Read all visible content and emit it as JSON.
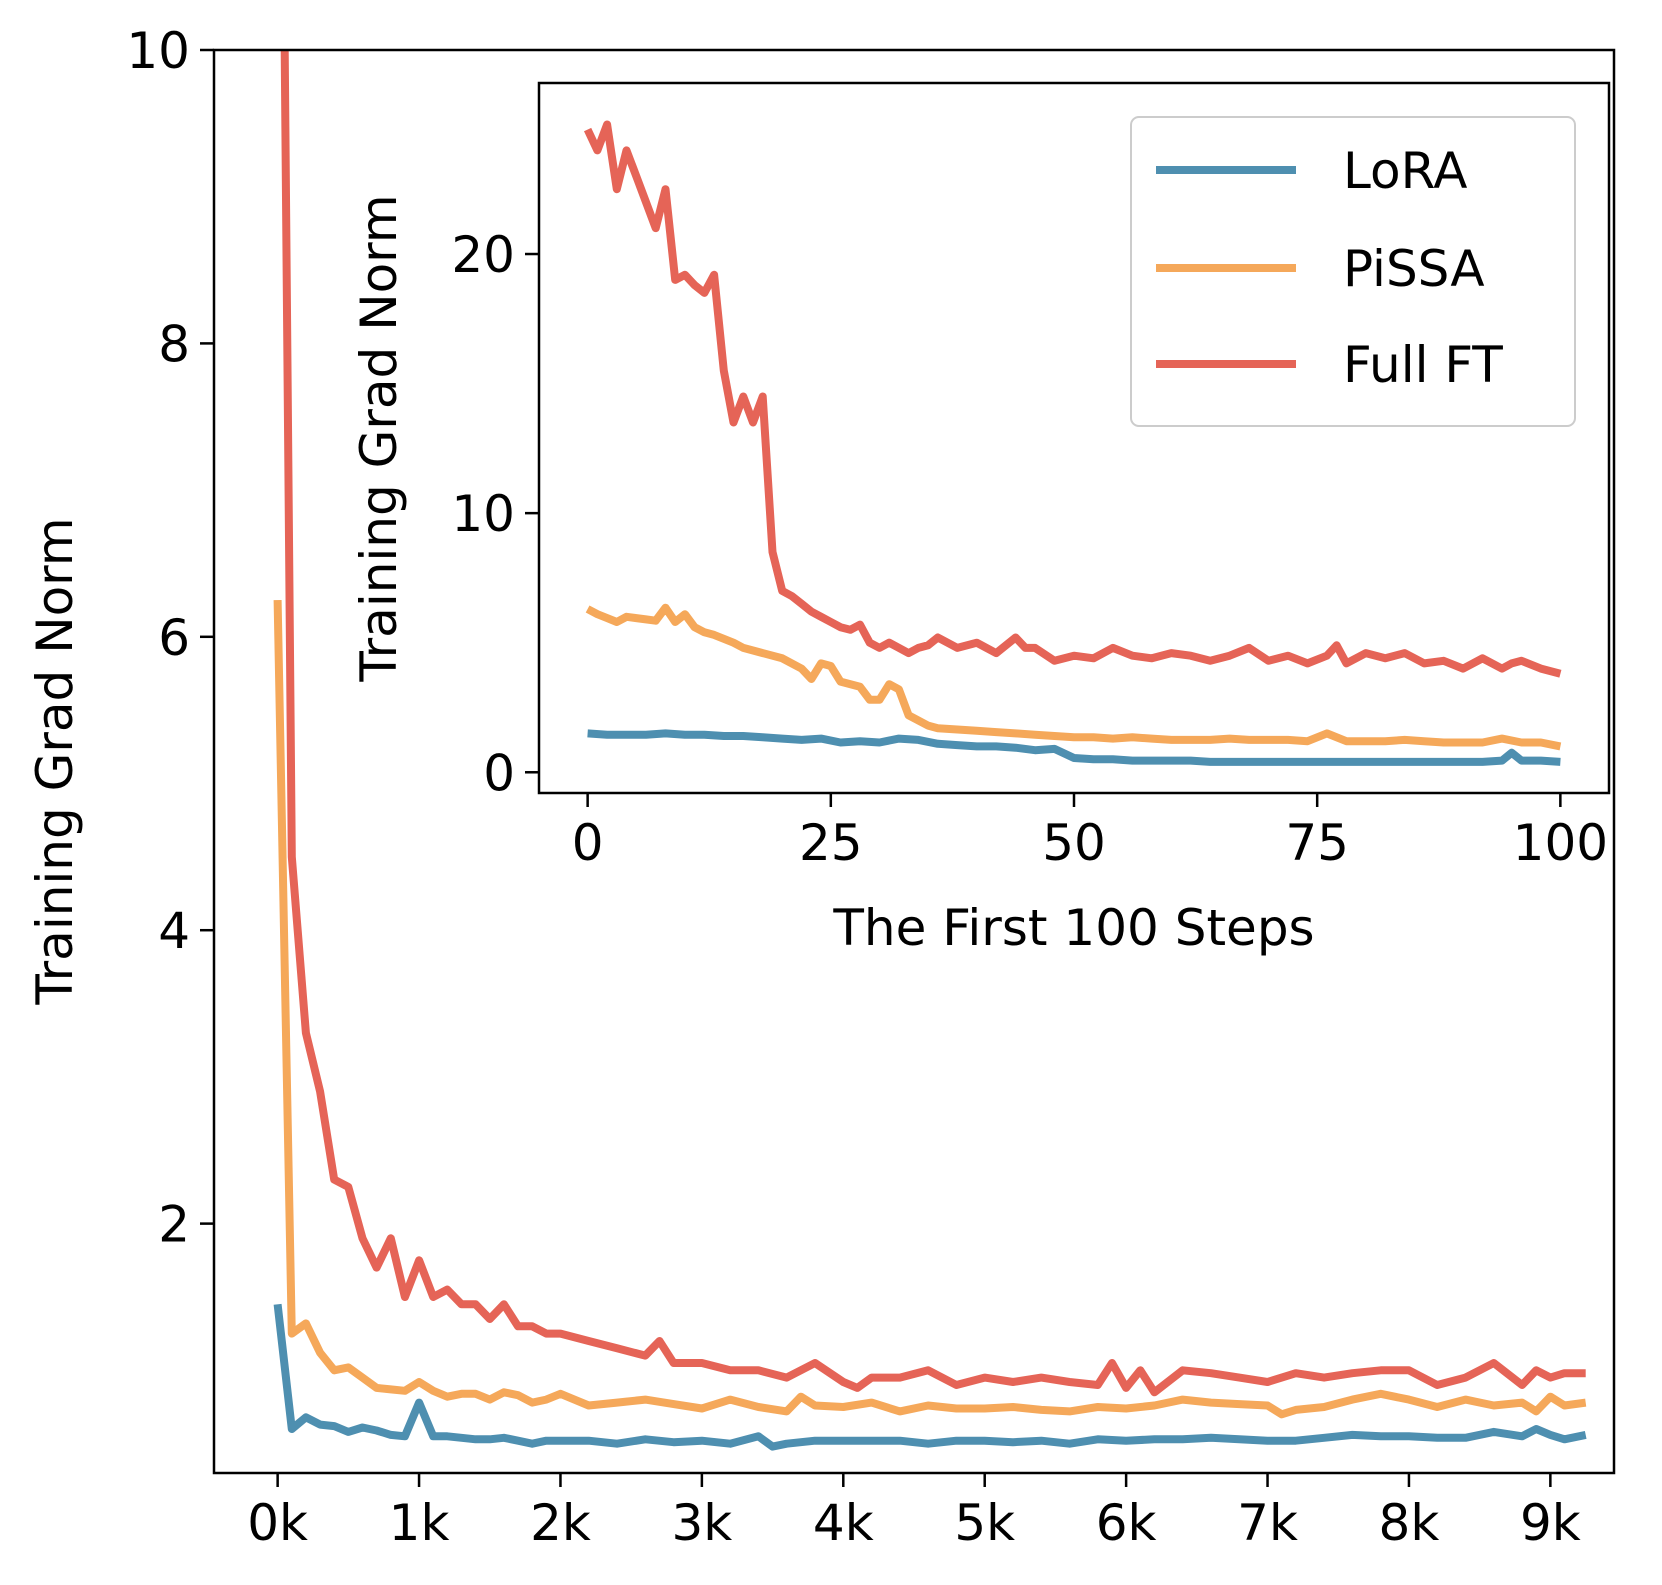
{
  "colors": {
    "lora": "#4e8fb0",
    "pissa": "#f5a85a",
    "full_ft": "#e56457"
  },
  "chart_data": [
    {
      "type": "line",
      "title": "",
      "xlabel": "",
      "ylabel": "Training Grad Norm",
      "xlim": [
        -0.45,
        9.45
      ],
      "ylim": [
        0.3,
        10
      ],
      "x_ticks": [
        0,
        1,
        2,
        3,
        4,
        5,
        6,
        7,
        8,
        9
      ],
      "x_tick_labels": [
        "0k",
        "1k",
        "2k",
        "3k",
        "4k",
        "5k",
        "6k",
        "7k",
        "8k",
        "9k"
      ],
      "y_ticks": [
        2,
        4,
        6,
        8,
        10
      ],
      "y_tick_labels": [
        "2",
        "4",
        "6",
        "8",
        "10"
      ],
      "series": [
        {
          "name": "LoRA",
          "color_key": "lora",
          "x": [
            0.0,
            0.1,
            0.2,
            0.3,
            0.4,
            0.5,
            0.6,
            0.7,
            0.8,
            0.9,
            1.0,
            1.1,
            1.2,
            1.3,
            1.4,
            1.5,
            1.6,
            1.7,
            1.8,
            1.9,
            2.0,
            2.2,
            2.4,
            2.6,
            2.8,
            3.0,
            3.2,
            3.4,
            3.5,
            3.6,
            3.8,
            4.0,
            4.2,
            4.4,
            4.6,
            4.8,
            5.0,
            5.2,
            5.4,
            5.6,
            5.8,
            6.0,
            6.2,
            6.4,
            6.6,
            6.8,
            7.0,
            7.2,
            7.4,
            7.6,
            7.8,
            8.0,
            8.2,
            8.4,
            8.6,
            8.8,
            8.9,
            9.0,
            9.1,
            9.25
          ],
          "y": [
            1.45,
            0.6,
            0.68,
            0.63,
            0.62,
            0.58,
            0.61,
            0.59,
            0.56,
            0.55,
            0.78,
            0.55,
            0.55,
            0.54,
            0.53,
            0.53,
            0.54,
            0.52,
            0.5,
            0.52,
            0.52,
            0.52,
            0.5,
            0.53,
            0.51,
            0.52,
            0.5,
            0.55,
            0.48,
            0.5,
            0.52,
            0.52,
            0.52,
            0.52,
            0.5,
            0.52,
            0.52,
            0.51,
            0.52,
            0.5,
            0.53,
            0.52,
            0.53,
            0.53,
            0.54,
            0.53,
            0.52,
            0.52,
            0.54,
            0.56,
            0.55,
            0.55,
            0.54,
            0.54,
            0.58,
            0.55,
            0.6,
            0.56,
            0.53,
            0.56
          ]
        },
        {
          "name": "PiSSA",
          "color_key": "pissa",
          "x": [
            0.0,
            0.1,
            0.2,
            0.3,
            0.4,
            0.5,
            0.6,
            0.7,
            0.8,
            0.9,
            1.0,
            1.1,
            1.2,
            1.3,
            1.4,
            1.5,
            1.6,
            1.7,
            1.8,
            1.9,
            2.0,
            2.2,
            2.4,
            2.6,
            2.8,
            3.0,
            3.2,
            3.4,
            3.6,
            3.7,
            3.8,
            4.0,
            4.2,
            4.4,
            4.6,
            4.8,
            5.0,
            5.2,
            5.4,
            5.6,
            5.8,
            6.0,
            6.2,
            6.4,
            6.6,
            6.8,
            7.0,
            7.1,
            7.2,
            7.4,
            7.6,
            7.8,
            8.0,
            8.2,
            8.4,
            8.6,
            8.8,
            8.9,
            9.0,
            9.1,
            9.25
          ],
          "y": [
            6.25,
            1.25,
            1.32,
            1.12,
            1.0,
            1.02,
            0.95,
            0.88,
            0.87,
            0.86,
            0.92,
            0.86,
            0.82,
            0.84,
            0.84,
            0.8,
            0.85,
            0.83,
            0.78,
            0.8,
            0.84,
            0.76,
            0.78,
            0.8,
            0.77,
            0.74,
            0.8,
            0.75,
            0.72,
            0.82,
            0.76,
            0.75,
            0.78,
            0.72,
            0.76,
            0.74,
            0.74,
            0.75,
            0.73,
            0.72,
            0.75,
            0.74,
            0.76,
            0.8,
            0.78,
            0.77,
            0.76,
            0.7,
            0.73,
            0.75,
            0.8,
            0.84,
            0.8,
            0.75,
            0.8,
            0.76,
            0.78,
            0.72,
            0.82,
            0.76,
            0.78
          ]
        },
        {
          "name": "Full FT",
          "color_key": "full_ft",
          "x": [
            0.05,
            0.1,
            0.2,
            0.3,
            0.4,
            0.5,
            0.6,
            0.7,
            0.8,
            0.9,
            1.0,
            1.1,
            1.2,
            1.3,
            1.4,
            1.5,
            1.6,
            1.7,
            1.8,
            1.9,
            2.0,
            2.2,
            2.4,
            2.6,
            2.7,
            2.8,
            3.0,
            3.2,
            3.4,
            3.6,
            3.8,
            4.0,
            4.1,
            4.2,
            4.4,
            4.6,
            4.8,
            5.0,
            5.2,
            5.4,
            5.6,
            5.8,
            5.9,
            6.0,
            6.1,
            6.2,
            6.4,
            6.6,
            6.8,
            7.0,
            7.2,
            7.4,
            7.6,
            7.8,
            8.0,
            8.2,
            8.4,
            8.6,
            8.8,
            8.9,
            9.0,
            9.1,
            9.25
          ],
          "y": [
            10.0,
            4.5,
            3.3,
            2.9,
            2.3,
            2.25,
            1.9,
            1.7,
            1.9,
            1.5,
            1.75,
            1.5,
            1.55,
            1.45,
            1.45,
            1.35,
            1.45,
            1.3,
            1.3,
            1.25,
            1.25,
            1.2,
            1.15,
            1.1,
            1.2,
            1.05,
            1.05,
            1.0,
            1.0,
            0.95,
            1.05,
            0.92,
            0.88,
            0.95,
            0.95,
            1.0,
            0.9,
            0.95,
            0.92,
            0.95,
            0.92,
            0.9,
            1.05,
            0.88,
            1.0,
            0.85,
            1.0,
            0.98,
            0.95,
            0.92,
            0.98,
            0.95,
            0.98,
            1.0,
            1.0,
            0.9,
            0.95,
            1.05,
            0.9,
            1.0,
            0.95,
            0.98,
            0.98
          ]
        }
      ]
    },
    {
      "type": "line",
      "title": "",
      "xlabel": "The First 100 Steps",
      "ylabel": "Training Grad Norm",
      "xlim": [
        -5,
        105
      ],
      "ylim": [
        -0.8,
        26.6
      ],
      "x_ticks": [
        0,
        25,
        50,
        75,
        100
      ],
      "x_tick_labels": [
        "0",
        "25",
        "50",
        "75",
        "100"
      ],
      "y_ticks": [
        0,
        10,
        20
      ],
      "y_tick_labels": [
        "0",
        "10",
        "20"
      ],
      "legend": {
        "position": "top-right",
        "entries": [
          "LoRA",
          "PiSSA",
          "Full FT"
        ]
      },
      "series": [
        {
          "name": "LoRA",
          "color_key": "lora",
          "x": [
            0,
            2,
            4,
            6,
            8,
            10,
            12,
            14,
            16,
            18,
            20,
            22,
            24,
            26,
            28,
            30,
            32,
            34,
            36,
            38,
            40,
            42,
            44,
            46,
            48,
            50,
            52,
            54,
            56,
            58,
            60,
            62,
            64,
            66,
            68,
            70,
            72,
            74,
            76,
            78,
            80,
            82,
            84,
            86,
            88,
            90,
            92,
            94,
            95,
            96,
            98,
            100
          ],
          "y": [
            1.5,
            1.45,
            1.45,
            1.45,
            1.5,
            1.45,
            1.45,
            1.4,
            1.4,
            1.35,
            1.3,
            1.25,
            1.3,
            1.15,
            1.2,
            1.15,
            1.3,
            1.25,
            1.1,
            1.05,
            1.0,
            1.0,
            0.95,
            0.85,
            0.9,
            0.55,
            0.5,
            0.5,
            0.45,
            0.45,
            0.45,
            0.45,
            0.4,
            0.4,
            0.4,
            0.4,
            0.4,
            0.4,
            0.4,
            0.4,
            0.4,
            0.4,
            0.4,
            0.4,
            0.4,
            0.4,
            0.4,
            0.45,
            0.75,
            0.45,
            0.45,
            0.4
          ]
        },
        {
          "name": "PiSSA",
          "color_key": "pissa",
          "x": [
            0,
            1,
            2,
            3,
            4,
            5,
            6,
            7,
            8,
            9,
            10,
            11,
            12,
            13,
            14,
            15,
            16,
            18,
            20,
            22,
            23,
            24,
            25,
            26,
            28,
            29,
            30,
            31,
            32,
            33,
            35,
            36,
            38,
            40,
            42,
            44,
            46,
            48,
            50,
            52,
            54,
            56,
            58,
            60,
            62,
            64,
            66,
            68,
            70,
            72,
            74,
            76,
            78,
            80,
            82,
            84,
            86,
            88,
            90,
            92,
            94,
            96,
            98,
            100
          ],
          "y": [
            6.3,
            6.1,
            5.95,
            5.8,
            6.0,
            5.95,
            5.9,
            5.85,
            6.35,
            5.8,
            6.1,
            5.6,
            5.4,
            5.3,
            5.15,
            5.0,
            4.8,
            4.6,
            4.4,
            4.0,
            3.6,
            4.2,
            4.1,
            3.5,
            3.3,
            2.8,
            2.8,
            3.4,
            3.2,
            2.2,
            1.8,
            1.7,
            1.65,
            1.6,
            1.55,
            1.5,
            1.45,
            1.4,
            1.35,
            1.35,
            1.3,
            1.35,
            1.3,
            1.25,
            1.25,
            1.25,
            1.3,
            1.25,
            1.25,
            1.25,
            1.2,
            1.5,
            1.2,
            1.2,
            1.2,
            1.25,
            1.2,
            1.15,
            1.15,
            1.15,
            1.3,
            1.15,
            1.15,
            1.0
          ]
        },
        {
          "name": "Full FT",
          "color_key": "full_ft",
          "x": [
            0,
            1,
            2,
            3,
            4,
            5,
            6,
            7,
            8,
            9,
            10,
            11,
            12,
            13,
            14,
            15,
            16,
            17,
            18,
            19,
            20,
            21,
            22,
            23,
            24,
            25,
            26,
            27,
            28,
            29,
            30,
            31,
            32,
            33,
            34,
            35,
            36,
            38,
            40,
            42,
            44,
            45,
            46,
            48,
            50,
            52,
            54,
            56,
            58,
            60,
            62,
            64,
            66,
            68,
            70,
            72,
            74,
            76,
            77,
            78,
            80,
            82,
            84,
            86,
            88,
            90,
            92,
            94,
            95,
            96,
            98,
            100
          ],
          "y": [
            24.8,
            24.0,
            25.0,
            22.5,
            24.0,
            23.0,
            22.0,
            21.0,
            22.5,
            19.0,
            19.2,
            18.8,
            18.5,
            19.2,
            15.5,
            13.5,
            14.5,
            13.5,
            14.5,
            8.5,
            7.0,
            6.8,
            6.5,
            6.2,
            6.0,
            5.8,
            5.6,
            5.5,
            5.7,
            5.0,
            4.8,
            5.0,
            4.8,
            4.6,
            4.8,
            4.9,
            5.2,
            4.8,
            5.0,
            4.6,
            5.2,
            4.8,
            4.8,
            4.3,
            4.5,
            4.4,
            4.8,
            4.5,
            4.4,
            4.6,
            4.5,
            4.3,
            4.5,
            4.8,
            4.3,
            4.5,
            4.2,
            4.5,
            4.9,
            4.2,
            4.6,
            4.4,
            4.6,
            4.2,
            4.3,
            4.0,
            4.4,
            4.0,
            4.2,
            4.3,
            4.0,
            3.8
          ]
        }
      ]
    }
  ]
}
